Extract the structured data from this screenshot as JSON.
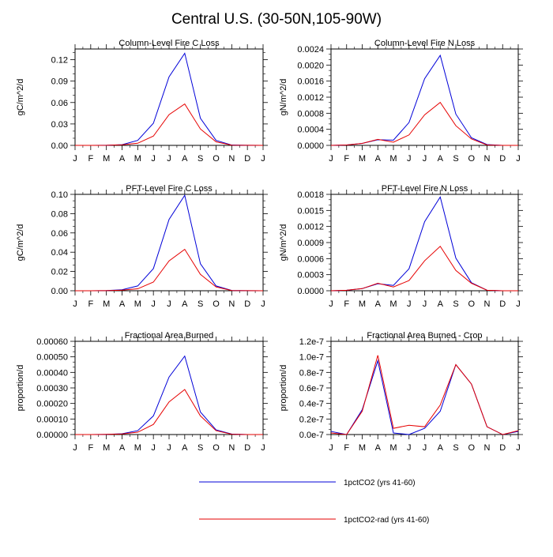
{
  "title": "Central U.S. (30-50N,105-90W)",
  "colors": {
    "series1": "#0000d8",
    "series2": "#e60000",
    "axis": "#000000"
  },
  "legend": {
    "placement": "bottom-center",
    "entries": [
      "1pctCO2 (yrs 41-60)",
      "1pctCO2-rad (yrs 41-60)"
    ]
  },
  "chart_data": [
    {
      "type": "line",
      "title": "Column-Level Fire C Loss",
      "ylabel": "gC/m^2/d",
      "x": [
        "J",
        "F",
        "M",
        "A",
        "M",
        "J",
        "J",
        "A",
        "S",
        "O",
        "N",
        "D",
        "J"
      ],
      "ylim": [
        0,
        0.135
      ],
      "yticks": [
        "0.00",
        "0.03",
        "0.06",
        "0.09",
        "0.12"
      ],
      "series": [
        {
          "name": "1pctCO2 (yrs 41-60)",
          "values": [
            0,
            0,
            0.0002,
            0.001,
            0.007,
            0.031,
            0.096,
            0.129,
            0.038,
            0.007,
            0.0005,
            0.0001,
            0
          ]
        },
        {
          "name": "1pctCO2-rad (yrs 41-60)",
          "values": [
            0,
            0,
            0.0001,
            0.0008,
            0.003,
            0.013,
            0.043,
            0.058,
            0.023,
            0.005,
            0.0003,
            0.0001,
            0
          ]
        }
      ]
    },
    {
      "type": "line",
      "title": "Column-Level Fire N Loss",
      "ylabel": "gN/m^2/d",
      "x": [
        "J",
        "F",
        "M",
        "A",
        "M",
        "J",
        "J",
        "A",
        "S",
        "O",
        "N",
        "D",
        "J"
      ],
      "ylim": [
        0,
        0.0024
      ],
      "yticks": [
        "0.0000",
        "0.0004",
        "0.0008",
        "0.0012",
        "0.0016",
        "0.0020",
        "0.0024"
      ],
      "series": [
        {
          "name": "1pctCO2 (yrs 41-60)",
          "values": [
            0,
            1e-05,
            5e-05,
            0.00014,
            0.00013,
            0.00057,
            0.00166,
            0.00224,
            0.00078,
            0.00019,
            2e-05,
            0,
            0
          ]
        },
        {
          "name": "1pctCO2-rad (yrs 41-60)",
          "values": [
            0,
            1e-05,
            5e-05,
            0.00015,
            8e-05,
            0.00026,
            0.00076,
            0.00107,
            0.00049,
            0.00016,
            1e-05,
            0,
            0
          ]
        }
      ]
    },
    {
      "type": "line",
      "title": "PFT-Level Fire C Loss",
      "ylabel": "gC/m^2/d",
      "x": [
        "J",
        "F",
        "M",
        "A",
        "M",
        "J",
        "J",
        "A",
        "S",
        "O",
        "N",
        "D",
        "J"
      ],
      "ylim": [
        0,
        0.1
      ],
      "yticks": [
        "0.00",
        "0.02",
        "0.04",
        "0.06",
        "0.08",
        "0.10"
      ],
      "series": [
        {
          "name": "1pctCO2 (yrs 41-60)",
          "values": [
            0,
            0,
            0.0002,
            0.001,
            0.005,
            0.023,
            0.074,
            0.099,
            0.028,
            0.005,
            0.0003,
            0.0001,
            0
          ]
        },
        {
          "name": "1pctCO2-rad (yrs 41-60)",
          "values": [
            0,
            0,
            0.0001,
            0.0006,
            0.002,
            0.009,
            0.031,
            0.043,
            0.017,
            0.004,
            0.0002,
            0.0001,
            0
          ]
        }
      ]
    },
    {
      "type": "line",
      "title": "PFT-Level Fire N Loss",
      "ylabel": "gN/m^2/d",
      "x": [
        "J",
        "F",
        "M",
        "A",
        "M",
        "J",
        "J",
        "A",
        "S",
        "O",
        "N",
        "D",
        "J"
      ],
      "ylim": [
        0,
        0.0018
      ],
      "yticks": [
        "0.0000",
        "0.0003",
        "0.0006",
        "0.0009",
        "0.0012",
        "0.0015",
        "0.0018"
      ],
      "series": [
        {
          "name": "1pctCO2 (yrs 41-60)",
          "values": [
            0,
            1e-05,
            4e-05,
            0.00013,
            0.0001,
            0.00041,
            0.00129,
            0.00175,
            0.00061,
            0.00015,
            1e-05,
            0,
            0
          ]
        },
        {
          "name": "1pctCO2-rad (yrs 41-60)",
          "values": [
            0,
            1e-05,
            4e-05,
            0.00014,
            7e-05,
            0.00019,
            0.00056,
            0.00083,
            0.00038,
            0.00014,
            1e-05,
            0,
            0
          ]
        }
      ]
    },
    {
      "type": "line",
      "title": "Fractional Area Burned",
      "ylabel": "proportion/d",
      "x": [
        "J",
        "F",
        "M",
        "A",
        "M",
        "J",
        "J",
        "A",
        "S",
        "O",
        "N",
        "D",
        "J"
      ],
      "ylim": [
        0,
        0.0006
      ],
      "yticks": [
        "0.00000",
        "0.00010",
        "0.00020",
        "0.00030",
        "0.00040",
        "0.00050",
        "0.00060"
      ],
      "series": [
        {
          "name": "1pctCO2 (yrs 41-60)",
          "values": [
            0,
            0,
            1e-06,
            5e-06,
            2.5e-05,
            0.00012,
            0.00037,
            0.000505,
            0.000145,
            3e-05,
            3e-06,
            0,
            0
          ]
        },
        {
          "name": "1pctCO2-rad (yrs 41-60)",
          "values": [
            0,
            0,
            1e-06,
            4e-06,
            1.5e-05,
            6.5e-05,
            0.00021,
            0.00029,
            0.00012,
            2.5e-05,
            2e-06,
            0,
            0
          ]
        }
      ]
    },
    {
      "type": "line",
      "title": "Fractional Area Burned - Crop",
      "ylabel": "proportion/d",
      "x": [
        "J",
        "F",
        "M",
        "A",
        "M",
        "J",
        "J",
        "A",
        "S",
        "O",
        "N",
        "D",
        "J"
      ],
      "ylim": [
        0,
        1.2e-07
      ],
      "yticks": [
        "0.0e-7",
        "0.2e-7",
        "0.4e-7",
        "0.6e-7",
        "0.8e-7",
        "1.0e-7",
        "1.2e-7"
      ],
      "series": [
        {
          "name": "1pctCO2 (yrs 41-60)",
          "values": [
            4e-09,
            0,
            3.2e-08,
            9.5e-08,
            2e-09,
            0,
            8e-09,
            3e-08,
            9e-08,
            6.5e-08,
            1e-08,
            0,
            4e-09
          ]
        },
        {
          "name": "1pctCO2-rad (yrs 41-60)",
          "values": [
            2e-09,
            0,
            3e-08,
            1.02e-07,
            8e-09,
            1.2e-08,
            1e-08,
            3.8e-08,
            9e-08,
            6.5e-08,
            1e-08,
            0,
            5e-09
          ]
        }
      ]
    }
  ]
}
